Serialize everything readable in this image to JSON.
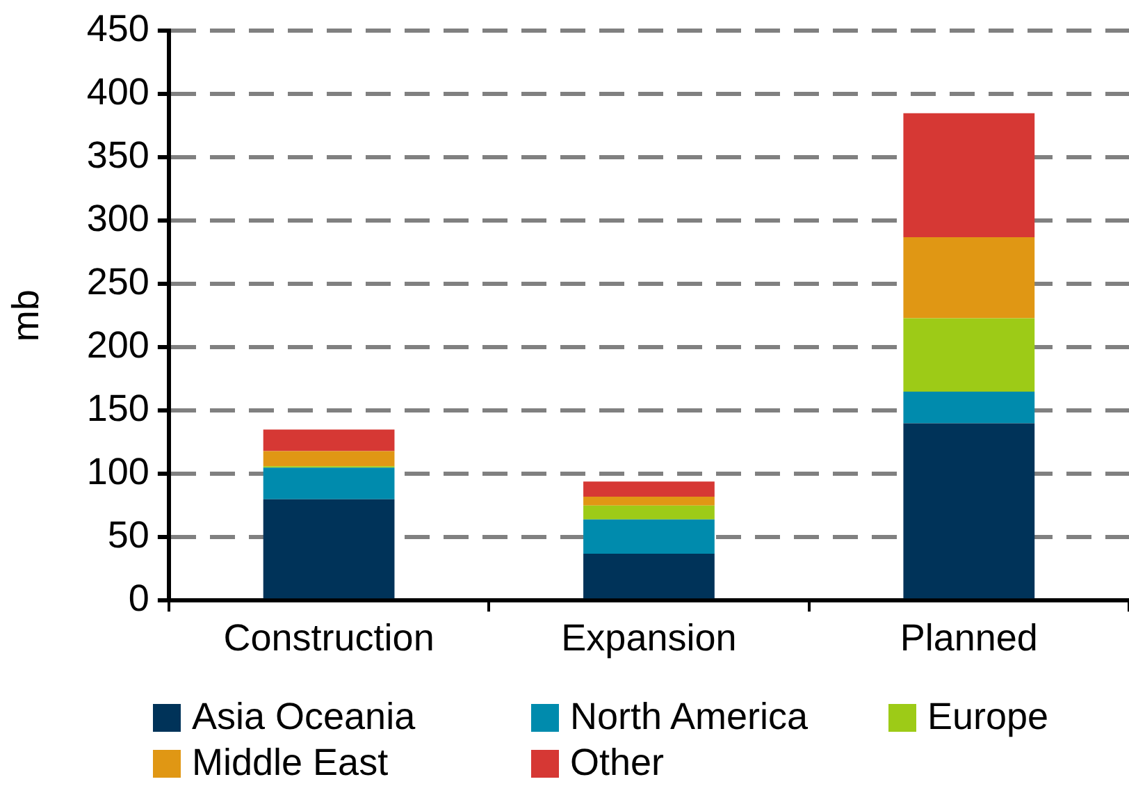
{
  "chart_data": {
    "type": "bar",
    "stacked": true,
    "ylabel": "mb",
    "categories": [
      "Construction",
      "Expansion",
      "Planned"
    ],
    "series": [
      {
        "name": "Asia Oceania",
        "color": "#003359",
        "values": [
          80,
          37,
          140
        ]
      },
      {
        "name": "North America",
        "color": "#008bad",
        "values": [
          25,
          27,
          25
        ]
      },
      {
        "name": "Europe",
        "color": "#9dcb17",
        "values": [
          1,
          11,
          58
        ]
      },
      {
        "name": "Middle East",
        "color": "#e09714",
        "values": [
          12,
          7,
          64
        ]
      },
      {
        "name": "Other",
        "color": "#d63834",
        "values": [
          17,
          12,
          98
        ]
      }
    ],
    "ylim": [
      0,
      450
    ],
    "yticks": [
      0,
      50,
      100,
      150,
      200,
      250,
      300,
      350,
      400,
      450
    ],
    "grid": "y",
    "legend": "bottom"
  }
}
